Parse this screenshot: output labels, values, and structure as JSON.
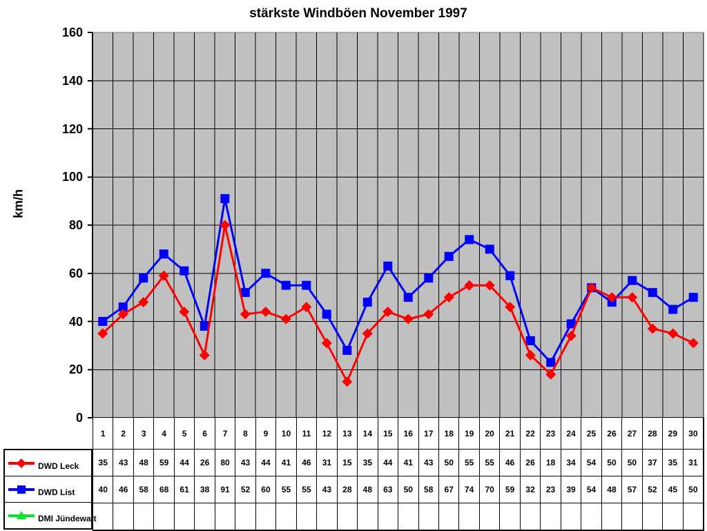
{
  "title": "stärkste Windböen November 1997",
  "chart_data": {
    "type": "line",
    "title": "stärkste Windböen November 1997",
    "xlabel": "",
    "ylabel": "km/h",
    "ylim": [
      0,
      160
    ],
    "yticks": [
      0,
      20,
      40,
      60,
      80,
      100,
      120,
      140,
      160
    ],
    "grid": true,
    "plot_bg": "#C0C0C0",
    "gridline_color": "#000000",
    "legend_position": "table-left",
    "categories": [
      1,
      2,
      3,
      4,
      5,
      6,
      7,
      8,
      9,
      10,
      11,
      12,
      13,
      14,
      15,
      16,
      17,
      18,
      19,
      20,
      21,
      22,
      23,
      24,
      25,
      26,
      27,
      28,
      29,
      30
    ],
    "series": [
      {
        "name": "DWD Leck",
        "color": "#FF0000",
        "marker": "diamond",
        "values": [
          35,
          43,
          48,
          59,
          44,
          26,
          80,
          43,
          44,
          41,
          46,
          31,
          15,
          35,
          44,
          41,
          43,
          50,
          55,
          55,
          46,
          26,
          18,
          34,
          54,
          50,
          50,
          37,
          35,
          31
        ]
      },
      {
        "name": "DWD List",
        "color": "#0000FF",
        "marker": "square",
        "values": [
          40,
          46,
          58,
          68,
          61,
          38,
          91,
          52,
          60,
          55,
          55,
          43,
          28,
          48,
          63,
          50,
          58,
          67,
          74,
          70,
          59,
          32,
          23,
          39,
          54,
          48,
          57,
          52,
          45,
          50
        ]
      },
      {
        "name": "DMI Jündewatt",
        "color": "#00E62E",
        "marker": "triangle",
        "values": []
      }
    ]
  }
}
